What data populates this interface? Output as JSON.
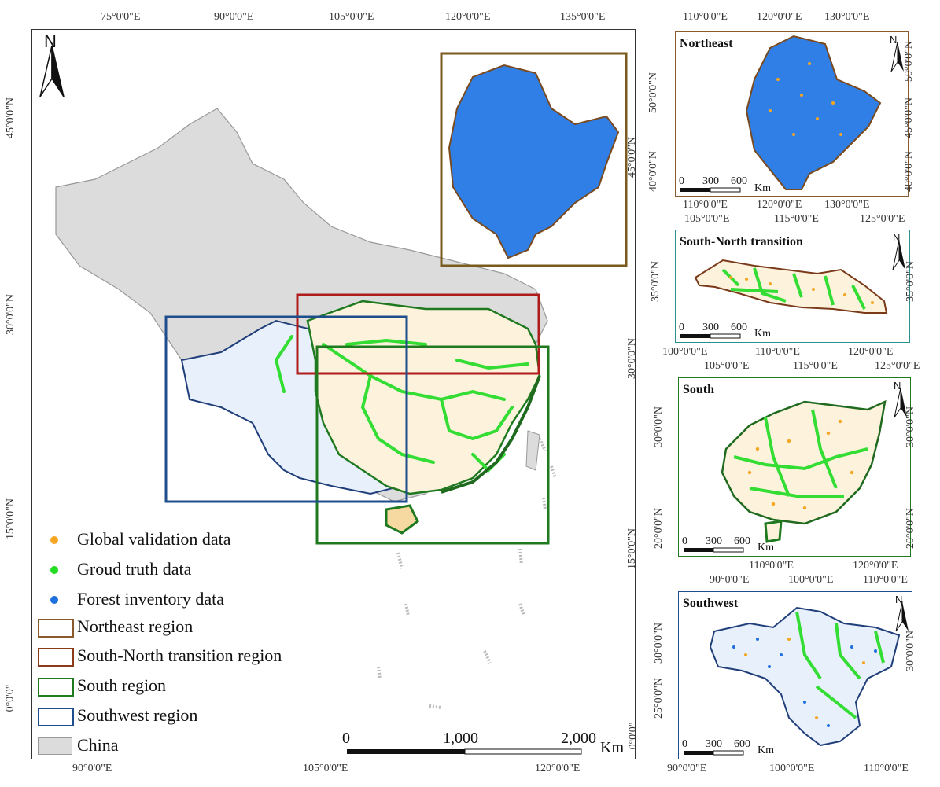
{
  "main_map": {
    "top_ticks": [
      "75°0'0\"E",
      "90°0'0\"E",
      "105°0'0\"E",
      "120°0'0\"E",
      "135°0'0\"E"
    ],
    "bottom_ticks": [
      "90°0'0\"E",
      "105°0'0\"E",
      "120°0'0\"E"
    ],
    "left_ticks": [
      "45°0'0\"N",
      "30°0'0\"N",
      "15°0'0\"N",
      "0°0'0\""
    ],
    "right_ticks": [
      "45°0'0\"N",
      "30°0'0\"N",
      "15°0'0\"N",
      "0°0'0\""
    ],
    "north_label": "N",
    "scale": {
      "labels": [
        "0",
        "1,000",
        "2,000"
      ],
      "unit": "Km"
    },
    "legend": [
      {
        "label": "Global validation data",
        "color": "#f5a623",
        "kind": "dot"
      },
      {
        "label": "Groud truth data",
        "color": "#22dd22",
        "kind": "dot"
      },
      {
        "label": "Forest inventory data",
        "color": "#1e6fe0",
        "kind": "dot"
      },
      {
        "label": "Northeast region",
        "color": "#8b5a2b",
        "kind": "box"
      },
      {
        "label": "South-North transition region",
        "color": "#8b3a1a",
        "kind": "box"
      },
      {
        "label": "South region",
        "color": "#1f7a1f",
        "kind": "box"
      },
      {
        "label": "Southwest region",
        "color": "#1f4e8c",
        "kind": "box"
      },
      {
        "label": "China",
        "color": "#dcdcdc",
        "kind": "fill"
      }
    ]
  },
  "panels": [
    {
      "title": "Northeast",
      "top_ticks": [
        "110°0'0\"E",
        "120°0'0\"E",
        "130°0'0\"E"
      ],
      "bottom_ticks": [
        "110°0'0\"E",
        "120°0'0\"E",
        "130°0'0\"E"
      ],
      "left_ticks": [
        "50°0'0\"N",
        "45°0'0\"N",
        "40°0'0\"N"
      ],
      "right_ticks": [
        "50°0'0\"N",
        "45°0'0\"N",
        "40°0'0\"N"
      ],
      "scale": [
        "0",
        "300",
        "600"
      ],
      "unit": "Km",
      "north": "N",
      "frame_color": "#8b5a2b"
    },
    {
      "title": "South-North transition",
      "top_ticks": [
        "105°0'0\"E",
        "115°0'0\"E",
        "125°0'0\"E"
      ],
      "bottom_ticks": [
        "100°0'0\"E",
        "110°0'0\"E",
        "120°0'0\"E"
      ],
      "left_ticks": [
        "35°0'0\"N"
      ],
      "right_ticks": [
        "35°0'0\"N"
      ],
      "scale": [
        "0",
        "300",
        "600"
      ],
      "unit": "Km",
      "north": "N",
      "frame_color": "#2a8f8f"
    },
    {
      "title": "South",
      "top_ticks": [
        "105°0'0\"E",
        "115°0'0\"E",
        "125°0'0\"E"
      ],
      "bottom_ticks": [
        "110°0'0\"E",
        "120°0'0\"E"
      ],
      "left_ticks": [
        "30°0'0\"N",
        "25°0'0\"N",
        "20°0'0\"N"
      ],
      "right_ticks": [
        "30°0'0\"N",
        "25°0'0\"N",
        "20°0'0\"N"
      ],
      "scale": [
        "0",
        "300",
        "600"
      ],
      "unit": "Km",
      "north": "N",
      "frame_color": "#1f7a1f"
    },
    {
      "title": "Southwest",
      "top_ticks": [
        "90°0'0\"E",
        "100°0'0\"E",
        "110°0'0\"E"
      ],
      "bottom_ticks": [
        "90°0'0\"E",
        "100°0'0\"E",
        "110°0'0\"E"
      ],
      "left_ticks": [
        "30°0'0\"N",
        "25°0'0\"N"
      ],
      "right_ticks": [
        "30°0'0\"N"
      ],
      "scale": [
        "0",
        "300",
        "600"
      ],
      "unit": "Km",
      "north": "N",
      "frame_color": "#1f4e8c"
    }
  ]
}
